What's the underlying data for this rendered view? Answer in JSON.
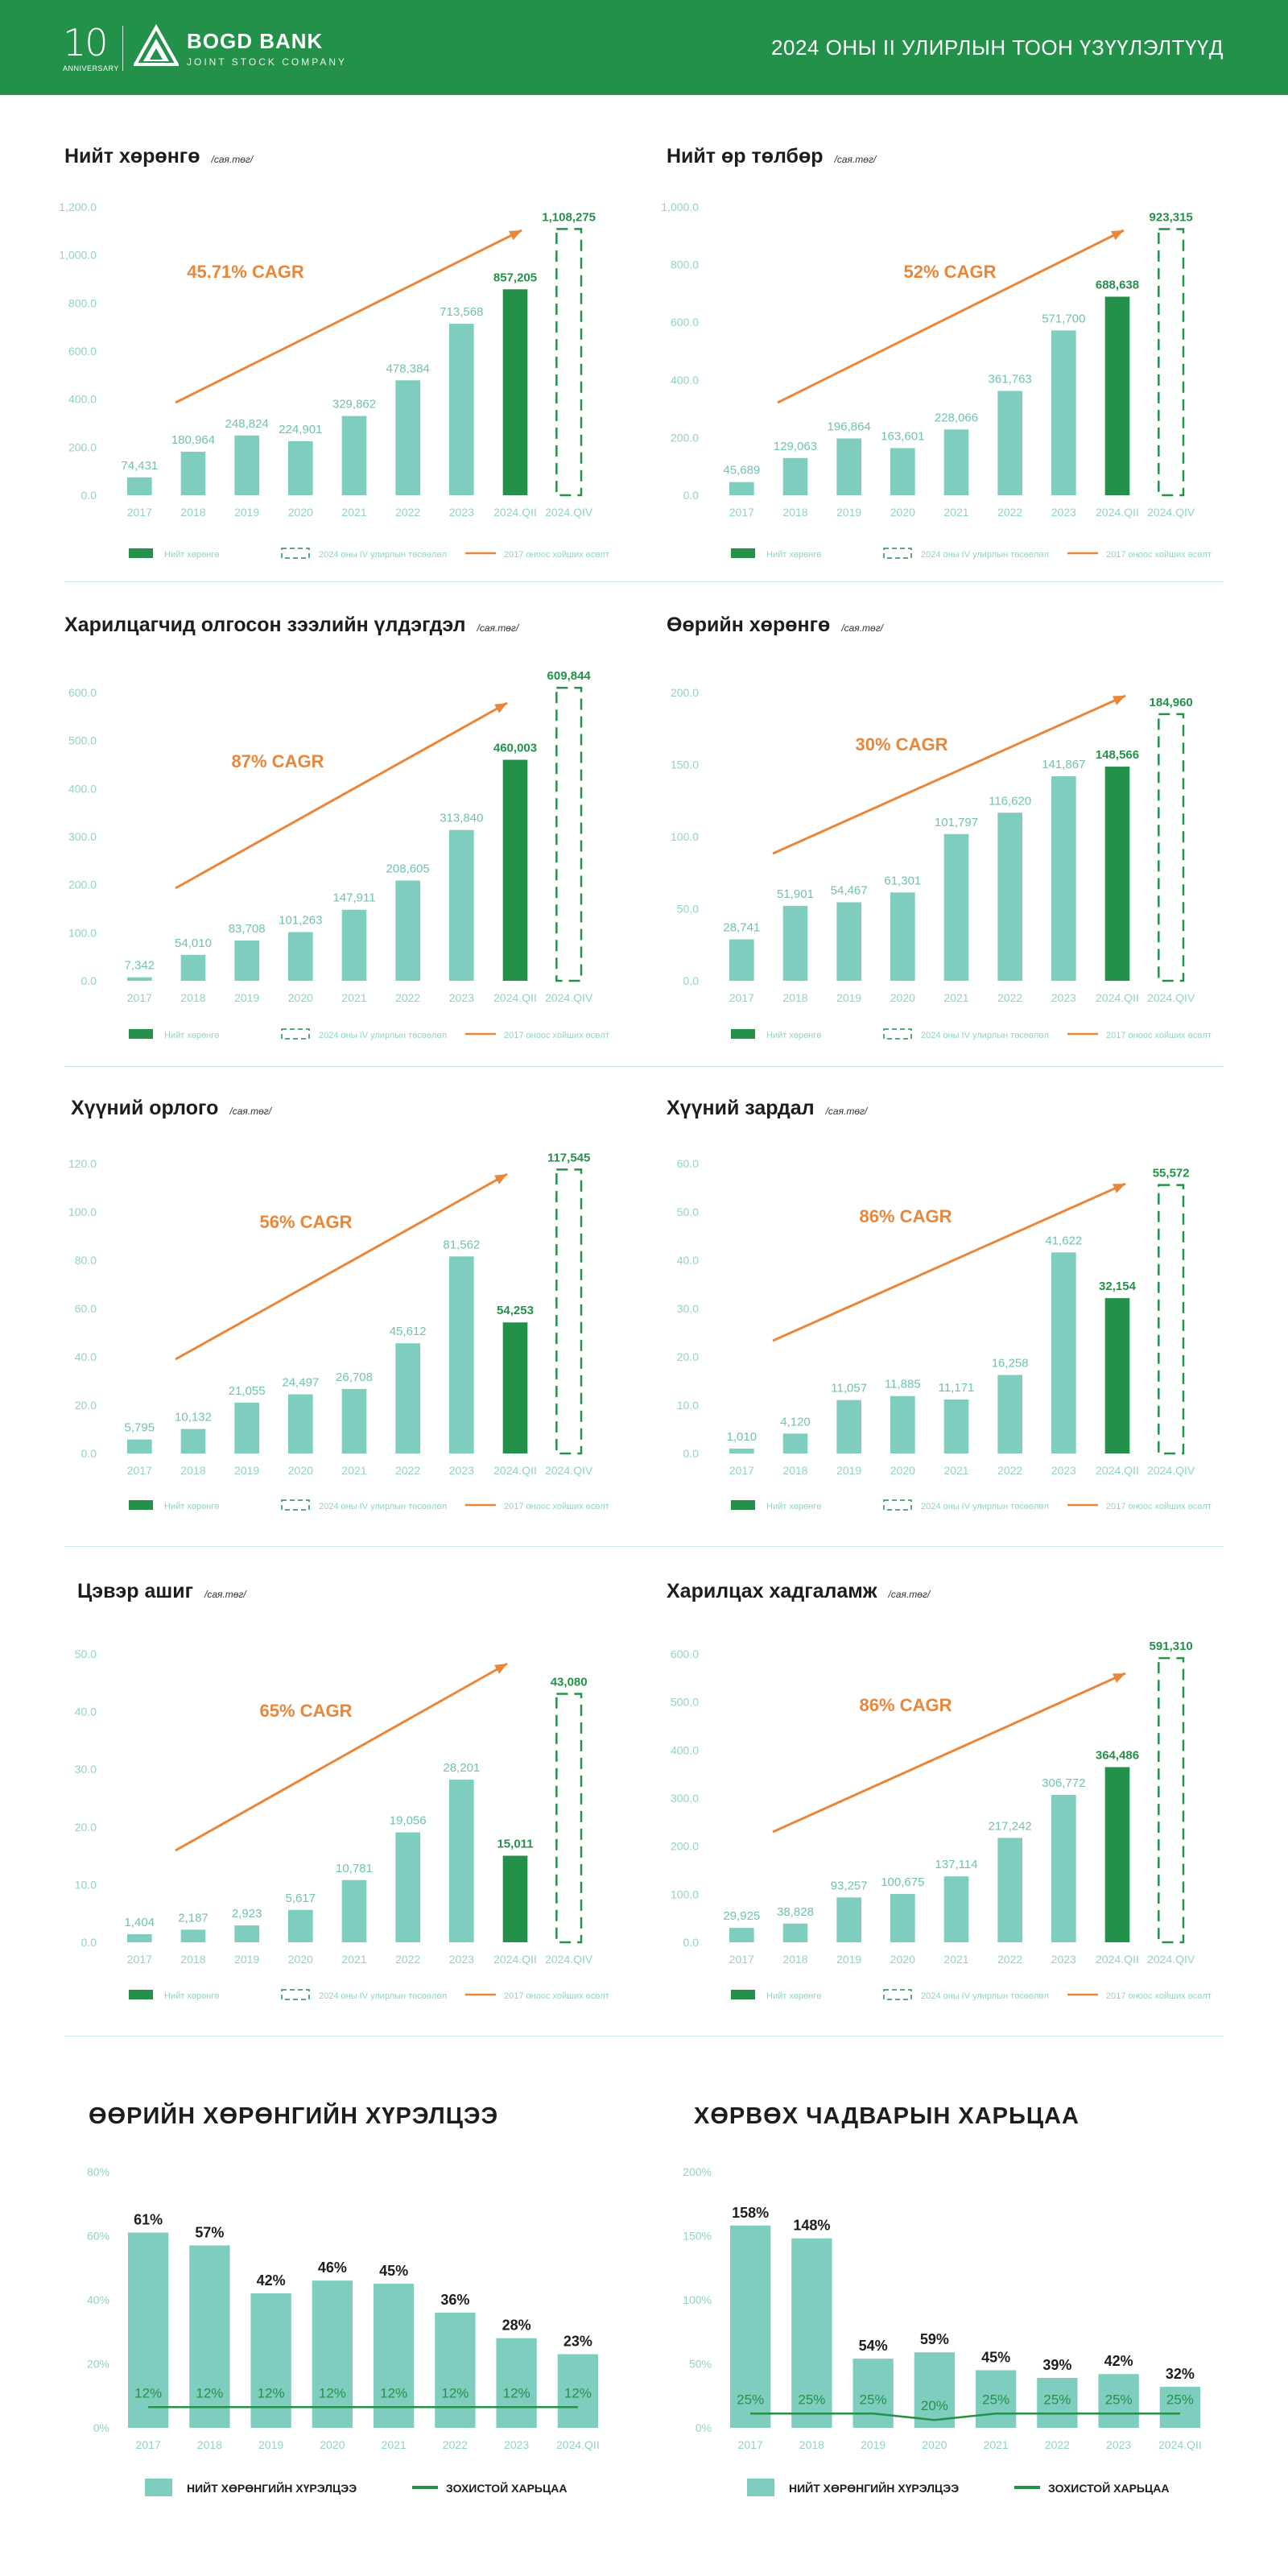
{
  "header": {
    "anniversary_number": "10",
    "anniversary_label": "ANNIVERSARY",
    "bank_name": "BOGD BANK",
    "bank_subtitle": "JOINT STOCK COMPANY",
    "report_title": "2024 ОНЫ II УЛИРЛЫН ТООН ҮЗҮҮЛЭЛТҮҮД"
  },
  "colors": {
    "brand_green": "#24914a",
    "bar_teal": "#7fcdbf",
    "current_bar": "#24914a",
    "arrow_orange": "#e8863a",
    "axis_text": "#8fd3c4",
    "label_text": "#1d1d1b"
  },
  "legend": {
    "actual": "Нийт хөрөнгө",
    "plan": "2024 оны IV улирлын төсөөлөл",
    "trend": "2017 оноос хойших өсөлт"
  },
  "legend_bottom": {
    "bar": "НИЙТ ХӨРӨНГИЙН ХҮРЭЛЦЭЭ",
    "line": "ЗОХИСТОЙ ХАРЬЦАА"
  },
  "chart_data": [
    {
      "id": "total-assets",
      "type": "bar",
      "title": "Нийт хөрөнгө",
      "unit": "/сая.төг/",
      "cagr_label": "45.71% CAGR",
      "categories": [
        "2017",
        "2018",
        "2019",
        "2020",
        "2021",
        "2022",
        "2023",
        "2024.QII",
        "2024.QIV"
      ],
      "values": [
        74431,
        180964,
        248824,
        224901,
        329862,
        478384,
        713568,
        857205,
        1108275
      ],
      "value_labels": [
        "74,431",
        "180,964",
        "248,824",
        "224,901",
        "329,862",
        "478,384",
        "713,568",
        "857,205",
        "1,108,275"
      ],
      "ylim": [
        0,
        1200
      ],
      "scale": 1000,
      "yticks": [
        "0.0",
        "200.0",
        "400.0",
        "600.0",
        "800.0",
        "1,000.0",
        "1,200.0"
      ]
    },
    {
      "id": "total-liabilities",
      "type": "bar",
      "title": "Нийт өр төлбөр",
      "unit": "/сая.төг/",
      "cagr_label": "52% CAGR",
      "categories": [
        "2017",
        "2018",
        "2019",
        "2020",
        "2021",
        "2022",
        "2023",
        "2024.QII",
        "2024.QIV"
      ],
      "values": [
        45689,
        129063,
        196864,
        163601,
        228066,
        361763,
        571700,
        688638,
        923315
      ],
      "value_labels": [
        "45,689",
        "129,063",
        "196,864",
        "163,601",
        "228,066",
        "361,763",
        "571,700",
        "688,638",
        "923,315"
      ],
      "ylim": [
        0,
        1000
      ],
      "scale": 1000,
      "yticks": [
        "0.0",
        "200.0",
        "400.0",
        "600.0",
        "800.0",
        "1,000.0"
      ]
    },
    {
      "id": "customer-loans",
      "type": "bar",
      "title": "Харилцагчид олгосон зээлийн үлдэгдэл",
      "unit": "/сая.төг/",
      "cagr_label": "87% CAGR",
      "categories": [
        "2017",
        "2018",
        "2019",
        "2020",
        "2021",
        "2022",
        "2023",
        "2024.QII",
        "2024.QIV"
      ],
      "values": [
        7342,
        54010,
        83708,
        101263,
        147911,
        208605,
        313840,
        460003,
        609844
      ],
      "value_labels": [
        "7,342",
        "54,010",
        "83,708",
        "101,263",
        "147,911",
        "208,605",
        "313,840",
        "460,003",
        "609,844"
      ],
      "ylim": [
        0,
        600
      ],
      "scale": 1000,
      "yticks": [
        "0.0",
        "100.0",
        "200.0",
        "300.0",
        "400.0",
        "500.0",
        "600.0"
      ]
    },
    {
      "id": "equity",
      "type": "bar",
      "title": "Өөрийн хөрөнгө",
      "unit": "/сая.төг/",
      "cagr_label": "30% CAGR",
      "categories": [
        "2017",
        "2018",
        "2019",
        "2020",
        "2021",
        "2022",
        "2023",
        "2024.QII",
        "2024.QIV"
      ],
      "values": [
        28741,
        51901,
        54467,
        61301,
        101797,
        116620,
        141867,
        148566,
        184960
      ],
      "value_labels": [
        "28,741",
        "51,901",
        "54,467",
        "61,301",
        "101,797",
        "116,620",
        "141,867",
        "148,566",
        "184,960"
      ],
      "ylim": [
        0,
        200
      ],
      "scale": 1000,
      "yticks": [
        "0.0",
        "50.0",
        "100.0",
        "150.0",
        "200.0"
      ]
    },
    {
      "id": "interest-income",
      "type": "bar",
      "title": "Хүүний орлого",
      "unit": "/сая.төг/",
      "cagr_label": "56% CAGR",
      "categories": [
        "2017",
        "2018",
        "2019",
        "2020",
        "2021",
        "2022",
        "2023",
        "2024.QII",
        "2024.QIV"
      ],
      "values": [
        5795,
        10132,
        21055,
        24497,
        26708,
        45612,
        81562,
        54253,
        117545
      ],
      "value_labels": [
        "5,795",
        "10,132",
        "21,055",
        "24,497",
        "26,708",
        "45,612",
        "81,562",
        "54,253",
        "117,545"
      ],
      "ylim": [
        0,
        120
      ],
      "scale": 1000,
      "yticks": [
        "0.0",
        "20.0",
        "40.0",
        "60.0",
        "80.0",
        "100.0",
        "120.0"
      ]
    },
    {
      "id": "interest-expense",
      "type": "bar",
      "title": "Хүүний зардал",
      "unit": "/сая.төг/",
      "cagr_label": "86% CAGR",
      "categories": [
        "2017",
        "2018",
        "2019",
        "2020",
        "2021",
        "2022",
        "2023",
        "2024.QII",
        "2024.QIV"
      ],
      "values": [
        1010,
        4120,
        11057,
        11885,
        11171,
        16258,
        41622,
        32154,
        55572
      ],
      "value_labels": [
        "1,010",
        "4,120",
        "11,057",
        "11,885",
        "11,171",
        "16,258",
        "41,622",
        "32,154",
        "55,572"
      ],
      "ylim": [
        0,
        60
      ],
      "scale": 1000,
      "yticks": [
        "0.0",
        "10.0",
        "20.0",
        "30.0",
        "40.0",
        "50.0",
        "60.0"
      ]
    },
    {
      "id": "net-profit",
      "type": "bar",
      "title": "Цэвэр ашиг",
      "unit": "/сая.төг/",
      "cagr_label": "65% CAGR",
      "categories": [
        "2017",
        "2018",
        "2019",
        "2020",
        "2021",
        "2022",
        "2023",
        "2024.QII",
        "2024.QIV"
      ],
      "values": [
        1404,
        2187,
        2923,
        5617,
        10781,
        19056,
        28201,
        15011,
        43080
      ],
      "value_labels": [
        "1,404",
        "2,187",
        "2,923",
        "5,617",
        "10,781",
        "19,056",
        "28,201",
        "15,011",
        "43,080"
      ],
      "ylim": [
        0,
        50
      ],
      "scale": 1000,
      "yticks": [
        "0.0",
        "10.0",
        "20.0",
        "30.0",
        "40.0",
        "50.0"
      ]
    },
    {
      "id": "current-deposits",
      "type": "bar",
      "title": "Харилцах хадгаламж",
      "unit": "/сая.төг/",
      "cagr_label": "86% CAGR",
      "categories": [
        "2017",
        "2018",
        "2019",
        "2020",
        "2021",
        "2022",
        "2023",
        "2024.QII",
        "2024.QIV"
      ],
      "values": [
        29925,
        38828,
        93257,
        100675,
        137114,
        217242,
        306772,
        364486,
        591310
      ],
      "value_labels": [
        "29,925",
        "38,828",
        "93,257",
        "100,675",
        "137,114",
        "217,242",
        "306,772",
        "364,486",
        "591,310"
      ],
      "ylim": [
        0,
        600
      ],
      "scale": 1000,
      "yticks": [
        "0.0",
        "100.0",
        "200.0",
        "300.0",
        "400.0",
        "500.0",
        "600.0"
      ]
    },
    {
      "id": "capital-adequacy",
      "type": "bar",
      "title": "ӨӨРИЙН ХӨРӨНГИЙН ХҮРЭЛЦЭЭ",
      "categories": [
        "2017",
        "2018",
        "2019",
        "2020",
        "2021",
        "2022",
        "2023",
        "2024.QII"
      ],
      "values": [
        61,
        57,
        42,
        46,
        45,
        36,
        28,
        23
      ],
      "value_labels": [
        "61%",
        "57%",
        "42%",
        "46%",
        "45%",
        "36%",
        "28%",
        "23%"
      ],
      "ratio_values": [
        12,
        12,
        12,
        12,
        12,
        12,
        12,
        12
      ],
      "ratio_labels": [
        "12%",
        "12%",
        "12%",
        "12%",
        "12%",
        "12%",
        "12%",
        "12%"
      ],
      "ylim": [
        0,
        80
      ],
      "yticks": [
        "0%",
        "20%",
        "40%",
        "60%",
        "80%"
      ]
    },
    {
      "id": "liquidity-ratio",
      "type": "bar",
      "title": "ХӨРВӨХ ЧАДВАРЫН ХАРЬЦАА",
      "categories": [
        "2017",
        "2018",
        "2019",
        "2020",
        "2021",
        "2022",
        "2023",
        "2024.QII"
      ],
      "values": [
        158,
        148,
        54,
        59,
        45,
        39,
        42,
        32
      ],
      "value_labels": [
        "158%",
        "148%",
        "54%",
        "59%",
        "45%",
        "39%",
        "42%",
        "32%"
      ],
      "ratio_values": [
        25,
        25,
        25,
        20,
        25,
        25,
        25,
        25
      ],
      "ratio_labels": [
        "25%",
        "25%",
        "25%",
        "20%",
        "25%",
        "25%",
        "25%",
        "25%"
      ],
      "ylim": [
        0,
        200
      ],
      "yticks": [
        "0%",
        "50%",
        "100%",
        "150%",
        "200%"
      ]
    }
  ]
}
